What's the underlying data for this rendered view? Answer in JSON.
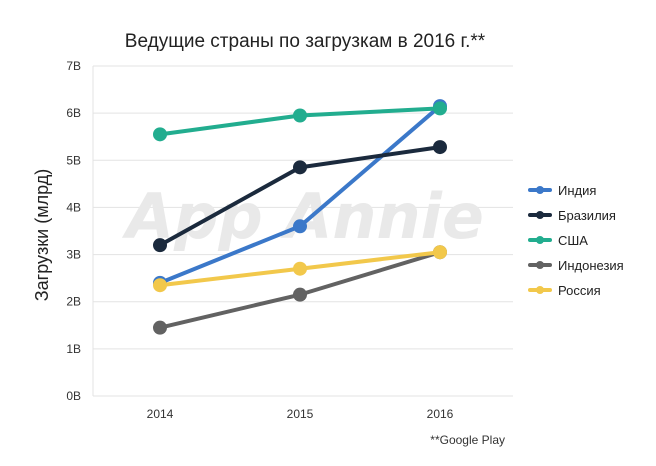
{
  "chart_data": {
    "type": "line",
    "title": "Ведущие страны по загрузкам в 2016 г.**",
    "xlabel": "",
    "ylabel": "Загрузки (млрд)",
    "categories": [
      "2014",
      "2015",
      "2016"
    ],
    "ylim": [
      0,
      7
    ],
    "yticks": [
      "0B",
      "1B",
      "2B",
      "3B",
      "4B",
      "5B",
      "6B",
      "7B"
    ],
    "grid": true,
    "legend_position": "right",
    "series": [
      {
        "name": "Индия",
        "color": "#3b78c9",
        "values": [
          2.4,
          3.6,
          6.15
        ]
      },
      {
        "name": "Бразилия",
        "color": "#1b2a3d",
        "values": [
          3.2,
          4.85,
          5.28
        ]
      },
      {
        "name": "США",
        "color": "#22ad8f",
        "values": [
          5.55,
          5.95,
          6.1
        ]
      },
      {
        "name": "Индонезия",
        "color": "#626262",
        "values": [
          1.45,
          2.15,
          3.05
        ]
      },
      {
        "name": "Россия",
        "color": "#f2c84b",
        "values": [
          2.35,
          2.7,
          3.05
        ]
      }
    ],
    "watermark": "App Annie",
    "source_note": "**Google Play"
  }
}
